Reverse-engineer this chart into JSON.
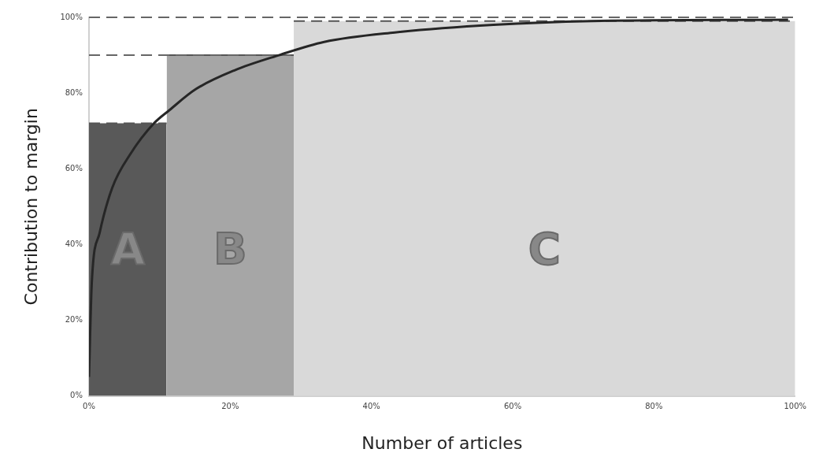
{
  "chart_data": {
    "type": "line",
    "xlabel": "Number of articles",
    "ylabel": "Contribution to margin",
    "xlim": [
      0,
      100
    ],
    "ylim": [
      0,
      100
    ],
    "xticks": [
      {
        "value": 0,
        "label": "0%"
      },
      {
        "value": 20,
        "label": "20%"
      },
      {
        "value": 40,
        "label": "40%"
      },
      {
        "value": 60,
        "label": "60%"
      },
      {
        "value": 80,
        "label": "80%"
      },
      {
        "value": 100,
        "label": "100%"
      }
    ],
    "yticks": [
      {
        "value": 0,
        "label": "0%"
      },
      {
        "value": 20,
        "label": "20%"
      },
      {
        "value": 40,
        "label": "40%"
      },
      {
        "value": 60,
        "label": "60%"
      },
      {
        "value": 80,
        "label": "80%"
      },
      {
        "value": 100,
        "label": "100%"
      }
    ],
    "series": [
      {
        "type": "area",
        "name": "A",
        "color": "#595959",
        "x": [
          0,
          11
        ],
        "values": [
          72,
          72
        ],
        "line_style": "dashed"
      },
      {
        "type": "area",
        "name": "B",
        "color": "#a6a6a6",
        "x": [
          11,
          29
        ],
        "values": [
          90,
          90
        ],
        "line_style": "dashed"
      },
      {
        "type": "area",
        "name": "C",
        "color": "#d9d9d9",
        "x": [
          29,
          100
        ],
        "values": [
          99,
          99
        ],
        "line_style": "dashed"
      },
      {
        "type": "line",
        "color": "#666666",
        "x": [
          0,
          29
        ],
        "values": [
          90,
          90
        ],
        "line_style": "dashed"
      },
      {
        "color": "#262626",
        "x": [
          0,
          0.4,
          1.5,
          3.3,
          5.9,
          9.2,
          11.4,
          15.1,
          20.6,
          26.9,
          33.3,
          43.3,
          57.3,
          71.2,
          99
        ],
        "values": [
          5,
          30,
          43,
          55,
          64,
          72,
          75.5,
          81,
          86,
          90,
          93.5,
          96,
          98,
          99,
          99.4
        ],
        "line_style": "solid"
      }
    ],
    "ref_lines": [
      {
        "axis": "y",
        "value": 100,
        "color": "#666666",
        "line_style": "dashed"
      }
    ],
    "grid": false,
    "legend": false,
    "marker": "none"
  }
}
